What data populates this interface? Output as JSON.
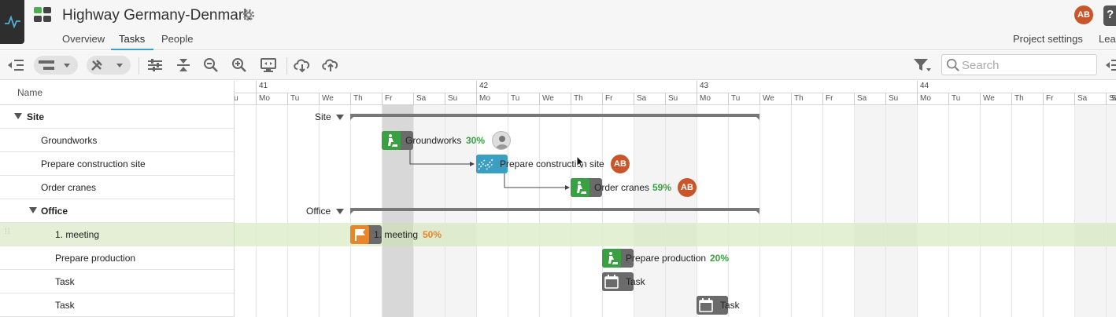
{
  "header": {
    "project_title": "Highway Germany-Denmark",
    "user_initials": "AB",
    "help_label": "?",
    "tabs": [
      {
        "label": "Overview",
        "active": false
      },
      {
        "label": "Tasks",
        "active": true
      },
      {
        "label": "People",
        "active": false
      }
    ],
    "project_settings_label": "Project settings",
    "learn_label": "Lear"
  },
  "toolbar": {
    "search_placeholder": "Search",
    "icons": [
      "outdent-icon",
      "bar-style-dropdown",
      "tools-dropdown",
      "settings-sliders-icon",
      "collapse-icon",
      "zoom-out-icon",
      "zoom-in-icon",
      "fit-screen-icon",
      "cloud-download-icon",
      "cloud-upload-icon",
      "filter-icon",
      "search-icon",
      "panel-toggle-icon"
    ]
  },
  "grid": {
    "column_header": "Name",
    "rows": [
      {
        "label": "Site",
        "group": true
      },
      {
        "label": "Groundworks",
        "group": false
      },
      {
        "label": "Prepare construction site",
        "group": false
      },
      {
        "label": "Order cranes",
        "group": false
      },
      {
        "label": "Office",
        "group": true
      },
      {
        "label": "1. meeting",
        "group": false,
        "selected": true
      },
      {
        "label": "Prepare production",
        "group": false
      },
      {
        "label": "Task",
        "group": false
      },
      {
        "label": "Task",
        "group": false
      }
    ]
  },
  "timeline": {
    "weeks": [
      "41",
      "42",
      "43",
      "44"
    ],
    "first_day_label": "u",
    "days": [
      "Mo",
      "Tu",
      "We",
      "Th",
      "Fr",
      "Sa",
      "Su",
      "Mo",
      "Tu",
      "We",
      "Th",
      "Fr",
      "Sa",
      "Su",
      "Mo",
      "Tu",
      "We",
      "Th",
      "Fr",
      "Sa",
      "Su",
      "Mo",
      "Tu",
      "We",
      "Th",
      "Fr",
      "Sa",
      "Su"
    ],
    "last_day_label": "S",
    "groups": {
      "site": "Site",
      "office": "Office"
    },
    "tasks": {
      "groundworks": {
        "name": "Groundworks",
        "progress": "30%"
      },
      "prepare_site": {
        "name": "Prepare construction site",
        "assignee": "AB"
      },
      "order_cranes": {
        "name": "Order cranes",
        "progress": "59%",
        "assignee": "AB"
      },
      "meeting": {
        "name": "1. meeting",
        "progress": "50%"
      },
      "prepare_production": {
        "name": "Prepare production",
        "progress": "20%"
      },
      "task1": {
        "name": "Task"
      },
      "task2": {
        "name": "Task"
      }
    },
    "colors": {
      "construction": "#3aa142",
      "grey_task": "#6b6b6b",
      "site_prep": "#3a9fc2",
      "milestone": "#e8862b",
      "avatar": "#c9562a"
    }
  }
}
